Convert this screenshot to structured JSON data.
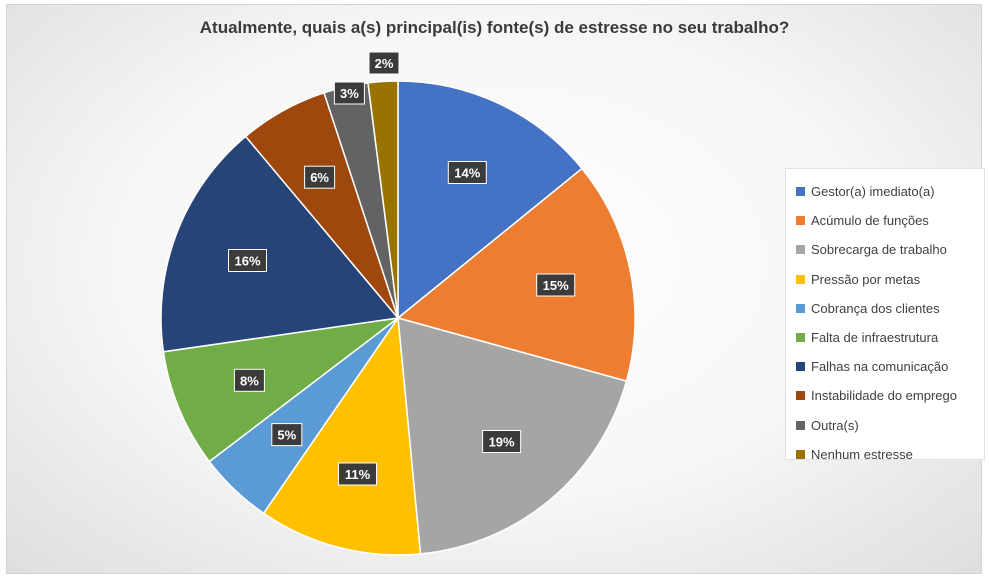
{
  "chart_data": {
    "type": "pie",
    "title": "Atualmente, quais a(s) principal(is) fonte(s) de estresse no seu trabalho?",
    "slices": [
      {
        "name": "Gestor(a) imediato(a)",
        "value": 14,
        "label": "14%",
        "color": "#4472C4"
      },
      {
        "name": "Acúmulo de funções",
        "value": 15,
        "label": "15%",
        "color": "#ED7D31"
      },
      {
        "name": "Sobrecarga de trabalho",
        "value": 19,
        "label": "19%",
        "color": "#A5A5A5"
      },
      {
        "name": "Pressão por metas",
        "value": 11,
        "label": "11%",
        "color": "#FFC000"
      },
      {
        "name": "Cobrança dos clientes",
        "value": 5,
        "label": "5%",
        "color": "#5B9BD5"
      },
      {
        "name": "Falta de infraestrutura",
        "value": 8,
        "label": "8%",
        "color": "#70AD47"
      },
      {
        "name": "Falhas na comunicação",
        "value": 16,
        "label": "16%",
        "color": "#264478"
      },
      {
        "name": "Instabilidade do emprego",
        "value": 6,
        "label": "6%",
        "color": "#9E480E"
      },
      {
        "name": "Outra(s)",
        "value": 3,
        "label": "3%",
        "color": "#636363"
      },
      {
        "name": "Nenhum estresse",
        "value": 2,
        "label": "2%",
        "color": "#997300"
      }
    ],
    "legend_position": "right",
    "data_label_style": "dark box, white bold text"
  }
}
